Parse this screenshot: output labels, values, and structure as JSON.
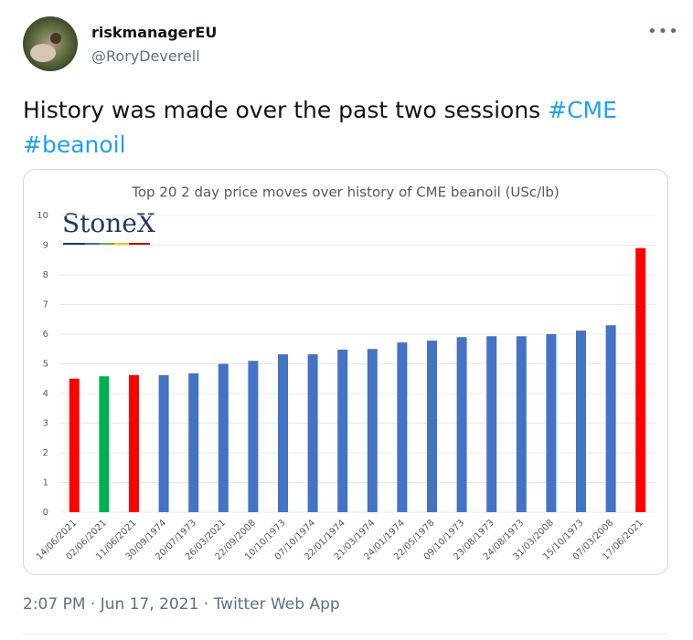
{
  "tweet": {
    "name": "riskmanagerEU",
    "handle": "@RoryDeverell",
    "text": "History was made over the past two sessions",
    "hashtags": [
      "#CME",
      "#beanoil"
    ],
    "timestamp": "2:07 PM · Jun 17, 2021 · Twitter Web App"
  },
  "chart_data": {
    "type": "bar",
    "title": "Top 20 2 day price moves over history of CME beanoil (USc/lb)",
    "logo": "StoneX",
    "categories": [
      "14/06/2021",
      "02/06/2021",
      "11/06/2021",
      "30/09/1974",
      "20/07/1973",
      "26/03/2021",
      "22/09/2008",
      "10/10/1973",
      "07/10/1974",
      "22/01/1974",
      "21/03/1974",
      "24/01/1974",
      "22/05/1978",
      "09/10/1973",
      "23/08/1973",
      "24/08/1973",
      "31/03/2008",
      "15/10/1973",
      "07/03/2008",
      "17/06/2021"
    ],
    "values": [
      4.5,
      4.58,
      4.62,
      4.62,
      4.68,
      5.0,
      5.1,
      5.32,
      5.32,
      5.48,
      5.5,
      5.72,
      5.78,
      5.9,
      5.93,
      5.93,
      6.0,
      6.12,
      6.3,
      8.9
    ],
    "colors": [
      "#ff0000",
      "#00b050",
      "#ff0000",
      "#4472c4",
      "#4472c4",
      "#4472c4",
      "#4472c4",
      "#4472c4",
      "#4472c4",
      "#4472c4",
      "#4472c4",
      "#4472c4",
      "#4472c4",
      "#4472c4",
      "#4472c4",
      "#4472c4",
      "#4472c4",
      "#4472c4",
      "#4472c4",
      "#ff0000"
    ],
    "ylim": [
      0,
      10
    ],
    "yticks": [
      0,
      1,
      2,
      3,
      4,
      5,
      6,
      7,
      8,
      9,
      10
    ],
    "grid": true
  }
}
